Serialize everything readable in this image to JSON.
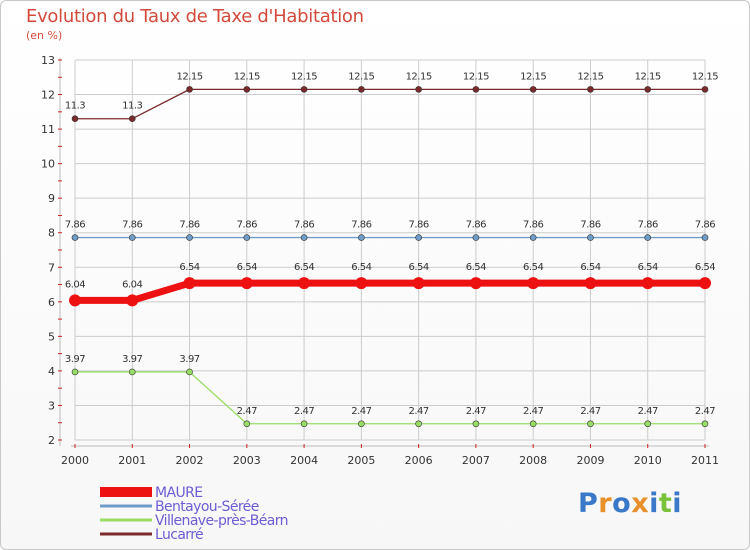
{
  "chart_data": {
    "type": "line",
    "title": "Evolution du Taux de Taxe d'Habitation",
    "subtitle": "(en %)",
    "x": [
      "2000",
      "2001",
      "2002",
      "2003",
      "2004",
      "2005",
      "2006",
      "2007",
      "2008",
      "2009",
      "2010",
      "2011"
    ],
    "yticks": [
      "2",
      "3",
      "4",
      "5",
      "6",
      "7",
      "8",
      "9",
      "10",
      "11",
      "12",
      "13"
    ],
    "ylim": [
      2,
      13
    ],
    "grid": true,
    "series": [
      {
        "name": "Lucarré",
        "color": "#7a2a2a",
        "values": [
          11.3,
          11.3,
          12.15,
          12.15,
          12.15,
          12.15,
          12.15,
          12.15,
          12.15,
          12.15,
          12.15,
          12.15
        ],
        "labels": [
          "11.3",
          "11.3",
          "12.15",
          "12.15",
          "12.15",
          "12.15",
          "12.15",
          "12.15",
          "12.15",
          "12.15",
          "12.15",
          "12.15"
        ]
      },
      {
        "name": "Bentayou-Sérée",
        "color": "#6f9dc8",
        "values": [
          7.86,
          7.86,
          7.86,
          7.86,
          7.86,
          7.86,
          7.86,
          7.86,
          7.86,
          7.86,
          7.86,
          7.86
        ],
        "labels": [
          "7.86",
          "7.86",
          "7.86",
          "7.86",
          "7.86",
          "7.86",
          "7.86",
          "7.86",
          "7.86",
          "7.86",
          "7.86",
          "7.86"
        ]
      },
      {
        "name": "MAURE",
        "color": "#ee1111",
        "values": [
          6.04,
          6.04,
          6.54,
          6.54,
          6.54,
          6.54,
          6.54,
          6.54,
          6.54,
          6.54,
          6.54,
          6.54
        ],
        "labels": [
          "6.04",
          "6.04",
          "6.54",
          "6.54",
          "6.54",
          "6.54",
          "6.54",
          "6.54",
          "6.54",
          "6.54",
          "6.54",
          "6.54"
        ]
      },
      {
        "name": "Villenave-près-Béarn",
        "color": "#99dd66",
        "values": [
          3.97,
          3.97,
          3.97,
          2.47,
          2.47,
          2.47,
          2.47,
          2.47,
          2.47,
          2.47,
          2.47,
          2.47
        ],
        "labels": [
          "3.97",
          "3.97",
          "3.97",
          "2.47",
          "2.47",
          "2.47",
          "2.47",
          "2.47",
          "2.47",
          "2.47",
          "2.47",
          "2.47"
        ]
      }
    ],
    "legend": {
      "position": "bottom-left",
      "items": [
        {
          "name": "MAURE",
          "color": "#ee1111"
        },
        {
          "name": "Bentayou-Sérée",
          "color": "#6f9dc8"
        },
        {
          "name": "Villenave-près-Béarn",
          "color": "#99dd66"
        },
        {
          "name": "Lucarré",
          "color": "#7a2a2a"
        }
      ]
    }
  },
  "brand": {
    "letters": [
      "P",
      "r",
      "o",
      "x",
      "i",
      "t",
      "i"
    ],
    "colors": [
      "#3a78c8",
      "#e8902a",
      "#3a78c8",
      "#e8902a",
      "#3a78c8",
      "#7ac23a",
      "#3a78c8"
    ]
  },
  "colors": {
    "title": "#d24a3c",
    "axis_text": "#333333",
    "legend_text": "#6d5dd3",
    "grid": "#cccccc",
    "axis_tick_red": "#cc2222"
  }
}
